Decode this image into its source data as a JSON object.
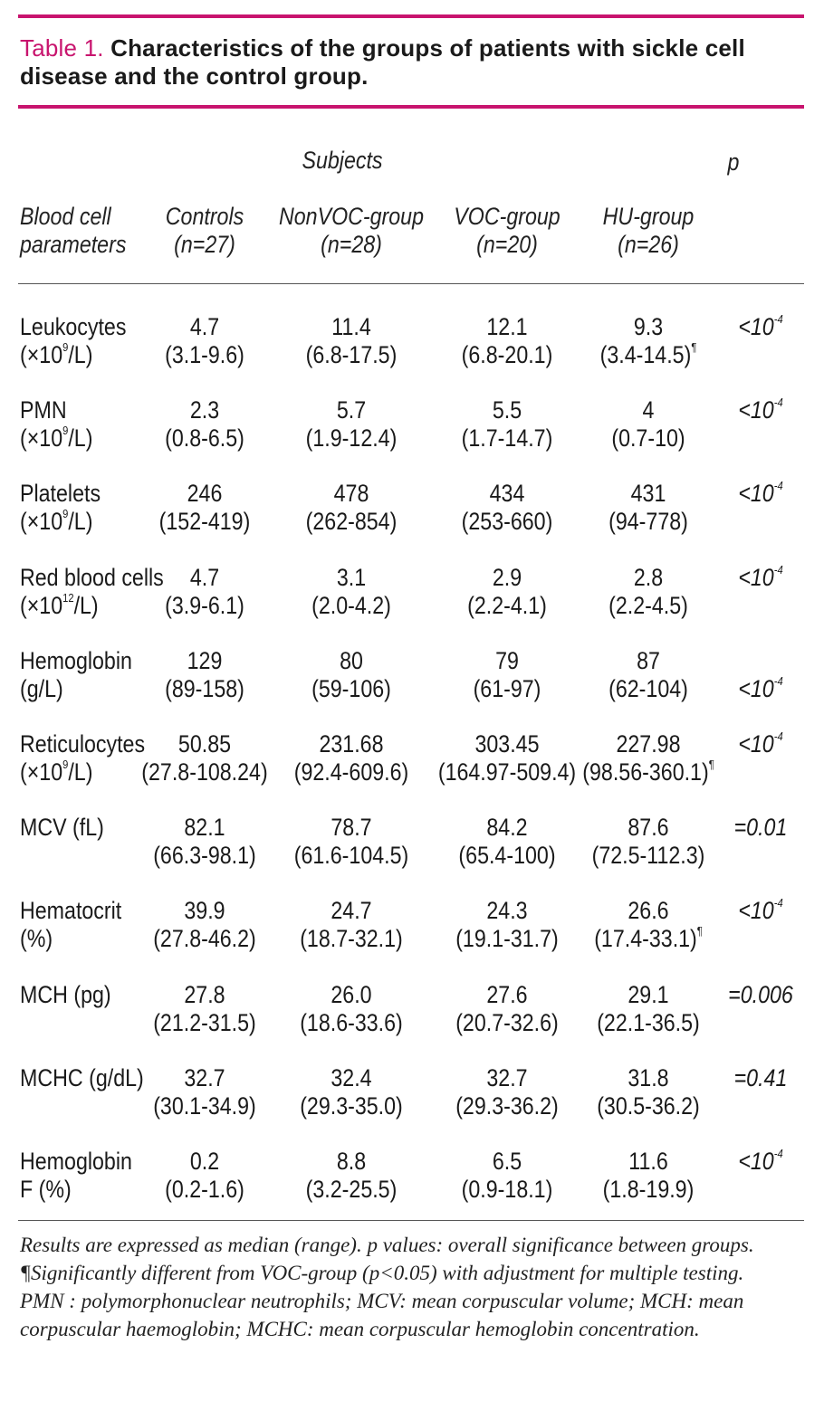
{
  "caption": {
    "label": "Table 1.",
    "text": "Characteristics of the groups of patients with sickle cell disease and the control group."
  },
  "header": {
    "subjects": "Subjects",
    "p": "p",
    "param_line1": "Blood cell",
    "param_line2": "parameters",
    "columns": [
      {
        "name": "Controls",
        "n": "(n=27)"
      },
      {
        "name": "NonVOC-group",
        "n": "(n=28)"
      },
      {
        "name": "VOC-group",
        "n": "(n=20)"
      },
      {
        "name": "HU-group",
        "n": "(n=26)"
      }
    ]
  },
  "rows": [
    {
      "l1": "Leukocytes",
      "l2a": "(×10",
      "l2sup": "9",
      "l2b": "/L)",
      "cells": [
        [
          "4.7",
          "(3.1-9.6)"
        ],
        [
          "11.4",
          "(6.8-17.5)"
        ],
        [
          "12.1",
          "(6.8-20.1)"
        ],
        [
          "9.3",
          "(3.4-14.5)"
        ]
      ],
      "mark": [
        false,
        false,
        false,
        true
      ],
      "p_base": "<10",
      "p_sup": "-4",
      "p_line": 1
    },
    {
      "l1": "PMN",
      "l2a": "(×10",
      "l2sup": "9",
      "l2b": "/L)",
      "cells": [
        [
          "2.3",
          "(0.8-6.5)"
        ],
        [
          "5.7",
          "(1.9-12.4)"
        ],
        [
          "5.5",
          "(1.7-14.7)"
        ],
        [
          "4",
          "(0.7-10)"
        ]
      ],
      "mark": [
        false,
        false,
        false,
        false
      ],
      "p_base": "<10",
      "p_sup": "-4",
      "p_line": 1
    },
    {
      "l1": "Platelets",
      "l2a": "(×10",
      "l2sup": "9",
      "l2b": "/L)",
      "cells": [
        [
          "246",
          "(152-419)"
        ],
        [
          "478",
          "(262-854)"
        ],
        [
          "434",
          "(253-660)"
        ],
        [
          "431",
          "(94-778)"
        ]
      ],
      "mark": [
        false,
        false,
        false,
        false
      ],
      "p_base": "<10",
      "p_sup": "-4",
      "p_line": 1
    },
    {
      "l1": "Red blood cells",
      "l2a": "(×10",
      "l2sup": "12",
      "l2b": "/L)",
      "cells": [
        [
          "4.7",
          "(3.9-6.1)"
        ],
        [
          "3.1",
          "(2.0-4.2)"
        ],
        [
          "2.9",
          "(2.2-4.1)"
        ],
        [
          "2.8",
          "(2.2-4.5)"
        ]
      ],
      "mark": [
        false,
        false,
        false,
        false
      ],
      "p_base": "<10",
      "p_sup": "-4",
      "p_line": 1
    },
    {
      "l1": "Hemoglobin",
      "l2a": "(g/L)",
      "l2sup": "",
      "l2b": "",
      "cells": [
        [
          "129",
          "(89-158)"
        ],
        [
          "80",
          "(59-106)"
        ],
        [
          "79",
          "(61-97)"
        ],
        [
          "87",
          "(62-104)"
        ]
      ],
      "mark": [
        false,
        false,
        false,
        false
      ],
      "p_base": "<10",
      "p_sup": "-4",
      "p_line": 2
    },
    {
      "l1": "Reticulocytes",
      "l2a": "(×10",
      "l2sup": "9",
      "l2b": "/L)",
      "cells": [
        [
          "50.85",
          "(27.8-108.24)"
        ],
        [
          "231.68",
          "(92.4-609.6)"
        ],
        [
          "303.45",
          "(164.97-509.4)"
        ],
        [
          "227.98",
          "(98.56-360.1)"
        ]
      ],
      "mark": [
        false,
        false,
        false,
        true
      ],
      "p_base": "<10",
      "p_sup": "-4",
      "p_line": 1
    },
    {
      "l1": "MCV (fL)",
      "l2a": "",
      "l2sup": "",
      "l2b": "",
      "cells": [
        [
          "82.1",
          "(66.3-98.1)"
        ],
        [
          "78.7",
          "(61.6-104.5)"
        ],
        [
          "84.2",
          "(65.4-100)"
        ],
        [
          "87.6",
          "(72.5-112.3)"
        ]
      ],
      "mark": [
        false,
        false,
        false,
        false
      ],
      "p_base": "=0.01",
      "p_sup": "",
      "p_line": 1
    },
    {
      "l1": "Hematocrit",
      "l2a": "(%)",
      "l2sup": "",
      "l2b": "",
      "cells": [
        [
          "39.9",
          "(27.8-46.2)"
        ],
        [
          "24.7",
          "(18.7-32.1)"
        ],
        [
          "24.3",
          "(19.1-31.7)"
        ],
        [
          "26.6",
          "(17.4-33.1)"
        ]
      ],
      "mark": [
        false,
        false,
        false,
        true
      ],
      "p_base": "<10",
      "p_sup": "-4",
      "p_line": 1
    },
    {
      "l1": "MCH (pg)",
      "l2a": "",
      "l2sup": "",
      "l2b": "",
      "cells": [
        [
          "27.8",
          "(21.2-31.5)"
        ],
        [
          "26.0",
          "(18.6-33.6)"
        ],
        [
          "27.6",
          "(20.7-32.6)"
        ],
        [
          "29.1",
          "(22.1-36.5)"
        ]
      ],
      "mark": [
        false,
        false,
        false,
        false
      ],
      "p_base": "=0.006",
      "p_sup": "",
      "p_line": 1
    },
    {
      "l1": "MCHC (g/dL)",
      "l2a": "",
      "l2sup": "",
      "l2b": "",
      "cells": [
        [
          "32.7",
          "(30.1-34.9)"
        ],
        [
          "32.4",
          "(29.3-35.0)"
        ],
        [
          "32.7",
          "(29.3-36.2)"
        ],
        [
          "31.8",
          "(30.5-36.2)"
        ]
      ],
      "mark": [
        false,
        false,
        false,
        false
      ],
      "p_base": "=0.41",
      "p_sup": "",
      "p_line": 1
    },
    {
      "l1": "Hemoglobin",
      "l2a": "F (%)",
      "l2sup": "",
      "l2b": "",
      "cells": [
        [
          "0.2",
          "(0.2-1.6)"
        ],
        [
          "8.8",
          "(3.2-25.5)"
        ],
        [
          "6.5",
          "(0.9-18.1)"
        ],
        [
          "11.6",
          "(1.8-19.9)"
        ]
      ],
      "mark": [
        false,
        false,
        false,
        false
      ],
      "p_base": "<10",
      "p_sup": "-4",
      "p_line": 1
    }
  ],
  "significance_mark": "¶",
  "footnote": "Results are expressed as median (range). p values: overall significance between groups. ¶Significantly different from VOC-group (p<0.05) with adjustment for multiple testing. PMN : polymorphonuclear neutrophils; MCV: mean corpuscular volume; MCH: mean corpuscular haemoglobin; MCHC: mean corpuscular hemoglobin concentration."
}
